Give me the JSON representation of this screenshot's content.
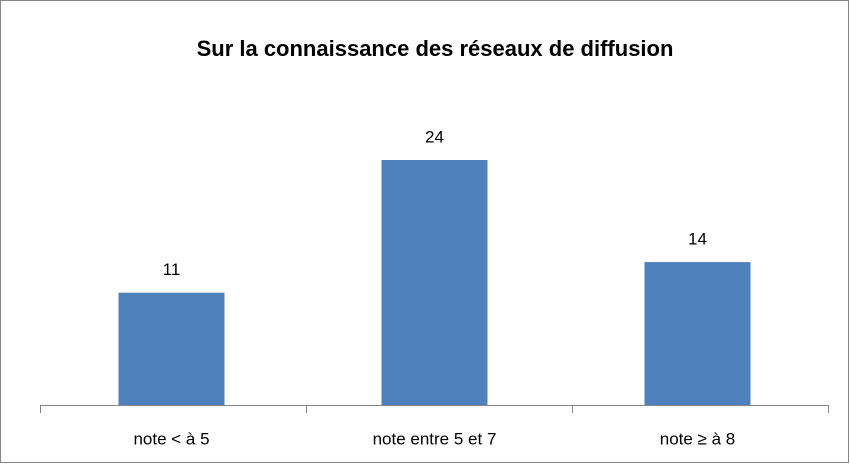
{
  "chart_data": {
    "type": "bar",
    "title": "Sur la connaissance des réseaux de diffusion",
    "categories": [
      "note < à 5",
      "note entre 5 et 7",
      "note ≥ à 8"
    ],
    "values": [
      11,
      24,
      14
    ],
    "color": "#4f81bd"
  }
}
